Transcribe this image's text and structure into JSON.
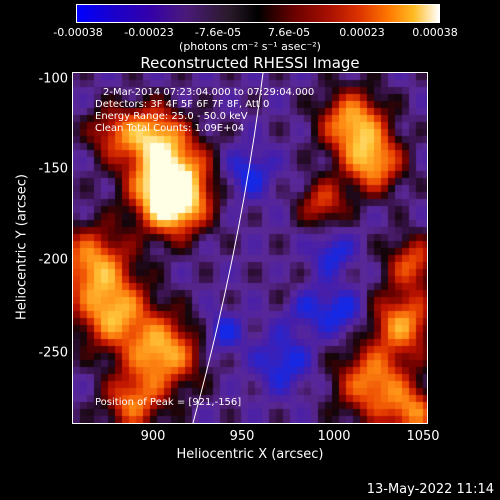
{
  "colorbar": {
    "ticks": [
      "-0.00038",
      "-0.00023",
      "-7.6e-05",
      "7.6e-05",
      "0.00023",
      "0.00038"
    ],
    "units": "(photons cm⁻² s⁻¹ asec⁻²)"
  },
  "chart_data": {
    "type": "heatmap",
    "title": "Reconstructed RHESSI Image",
    "xlabel": "Heliocentric X (arcsec)",
    "ylabel": "Heliocentric Y (arcsec)",
    "xlim": [
      860,
      1050
    ],
    "ylim": [
      -290,
      -97
    ],
    "x_ticks": [
      "900",
      "950",
      "1000",
      "1050"
    ],
    "y_ticks": [
      "-100",
      "-150",
      "-200",
      "-250"
    ],
    "annotations": [
      "2-Mar-2014 07:23:04.000 to 07:29:04.000",
      "Detectors: 3F 4F 5F 6F 7F 8F, Att 0",
      "Energy Range: 25.0 - 50.0 keV",
      "Clean     Total Counts: 1.09E+04"
    ],
    "peak_label": "Position of Peak = [921,-156]",
    "peak": [
      921,
      -156
    ]
  },
  "timestamp": "13-May-2022 11:14"
}
